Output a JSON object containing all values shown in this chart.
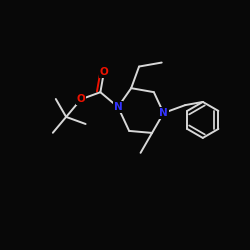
{
  "background": "#080808",
  "bond_color": "#d8d8d8",
  "N_color": "#3333ff",
  "O_color": "#ee1100",
  "lw": 1.4,
  "xlim": [
    0,
    250
  ],
  "ylim": [
    0,
    250
  ]
}
